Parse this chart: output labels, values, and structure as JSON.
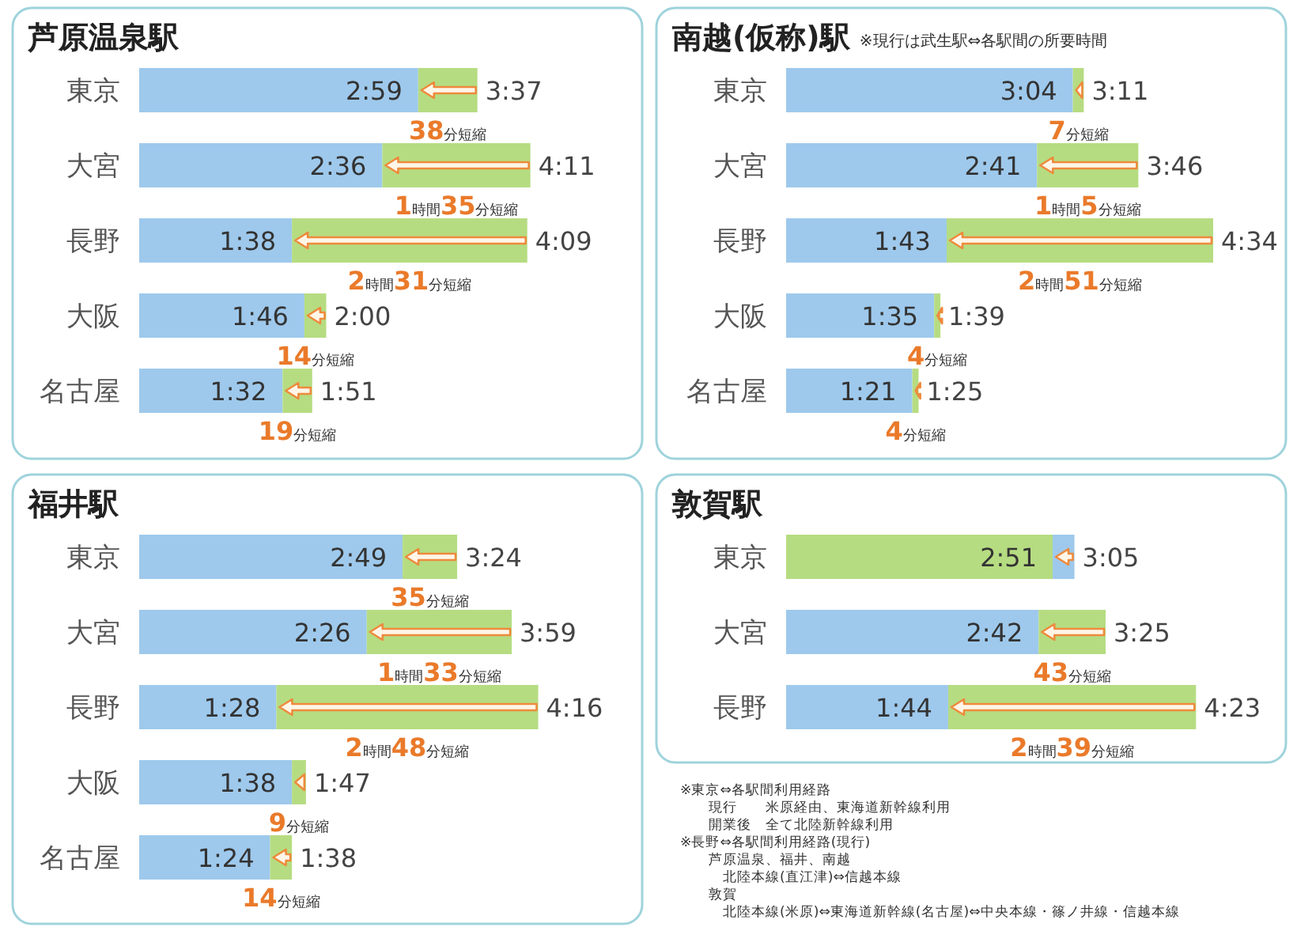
{
  "chart_data": [
    {
      "type": "bar",
      "orientation": "horizontal",
      "stacked": true,
      "title": "芦原温泉駅",
      "categories": [
        "東京",
        "大宮",
        "長野",
        "大阪",
        "名古屋"
      ],
      "series": [
        {
          "color": "#9ec9ec",
          "values": [
            179,
            156,
            98,
            106,
            92
          ],
          "value_labels": [
            "2:59",
            "2:36",
            "1:38",
            "1:46",
            "1:32"
          ]
        },
        {
          "color": "#b6dc82",
          "values": [
            38,
            95,
            151,
            14,
            19
          ]
        }
      ],
      "totals": [
        "3:37",
        "4:11",
        "4:09",
        "2:00",
        "1:51"
      ],
      "annotations": [
        "38分短縮",
        "1時間35分短縮",
        "2時間31分短縮",
        "14分短縮",
        "19分短縮"
      ]
    },
    {
      "type": "bar",
      "orientation": "horizontal",
      "stacked": true,
      "title": "南越(仮称)駅",
      "subtitle": "※現行は武生駅⇔各駅間の所要時間",
      "categories": [
        "東京",
        "大宮",
        "長野",
        "大阪",
        "名古屋"
      ],
      "series": [
        {
          "color": "#9ec9ec",
          "values": [
            184,
            161,
            103,
            95,
            81
          ],
          "value_labels": [
            "3:04",
            "2:41",
            "1:43",
            "1:35",
            "1:21"
          ]
        },
        {
          "color": "#b6dc82",
          "values": [
            7,
            65,
            171,
            4,
            4
          ]
        }
      ],
      "totals": [
        "3:11",
        "3:46",
        "4:34",
        "1:39",
        "1:25"
      ],
      "annotations": [
        "7分短縮",
        "1時間5分短縮",
        "2時間51分短縮",
        "4分短縮",
        "4分短縮"
      ]
    },
    {
      "type": "bar",
      "orientation": "horizontal",
      "stacked": true,
      "title": "福井駅",
      "categories": [
        "東京",
        "大宮",
        "長野",
        "大阪",
        "名古屋"
      ],
      "series": [
        {
          "color": "#9ec9ec",
          "values": [
            169,
            146,
            88,
            98,
            84
          ],
          "value_labels": [
            "2:49",
            "2:26",
            "1:28",
            "1:38",
            "1:24"
          ]
        },
        {
          "color": "#b6dc82",
          "values": [
            35,
            93,
            168,
            9,
            14
          ]
        }
      ],
      "totals": [
        "3:24",
        "3:59",
        "4:16",
        "1:47",
        "1:38"
      ],
      "annotations": [
        "35分短縮",
        "1時間33分短縮",
        "2時間48分短縮",
        "9分短縮",
        "14分短縮"
      ]
    },
    {
      "type": "bar",
      "orientation": "horizontal",
      "stacked": true,
      "title": "敦賀駅",
      "categories": [
        "東京",
        "大宮",
        "長野"
      ],
      "series": [
        {
          "colors": [
            "#b6dc82",
            "#9ec9ec",
            "#9ec9ec"
          ],
          "values": [
            171,
            162,
            104
          ],
          "value_labels": [
            "2:51",
            "2:42",
            "1:44"
          ]
        },
        {
          "colors": [
            "#9ec9ec",
            "#b6dc82",
            "#b6dc82"
          ],
          "values": [
            14,
            43,
            159
          ]
        }
      ],
      "totals": [
        "3:05",
        "3:25",
        "4:23"
      ],
      "annotations": [
        "43分短縮",
        "2時間39分短縮"
      ]
    },
    {
      "type": "other",
      "annotations": [
        "※東京⇔各駅間利用経路",
        "　　現行　　米原経由、東海道新幹線利用",
        "　　開業後　全て北陸新幹線利用",
        "※長野⇔各駅間利用経路(現行)",
        "　　芦原温泉、福井、南越",
        "　　　北陸本線(直江津)⇔信越本線",
        "　　敦賀",
        "　　　北陸本線(米原)⇔東海道新幹線(名古屋)⇔中央本線・篠ノ井線・信越本線"
      ]
    }
  ]
}
